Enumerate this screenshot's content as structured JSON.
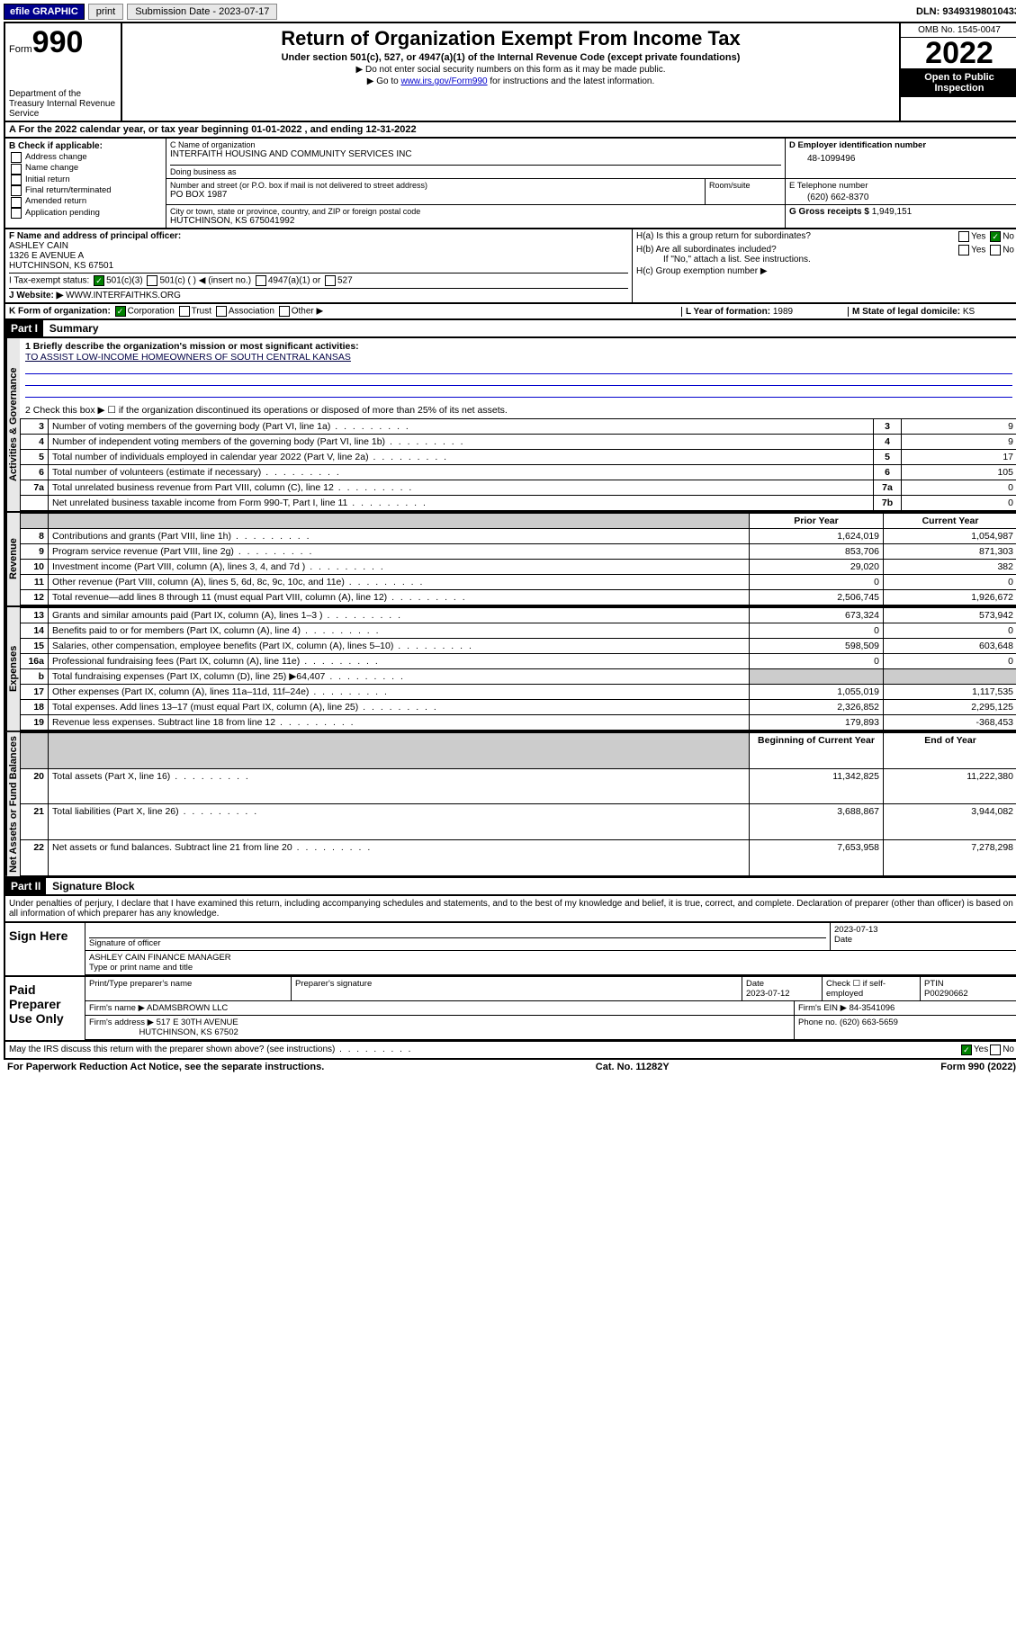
{
  "topbar": {
    "efile": "efile GRAPHIC",
    "print": "print",
    "subdate_label": "Submission Date - 2023-07-17",
    "dln": "DLN: 93493198010433"
  },
  "header": {
    "form_prefix": "Form",
    "form_number": "990",
    "dept": "Department of the Treasury Internal Revenue Service",
    "title": "Return of Organization Exempt From Income Tax",
    "sub1": "Under section 501(c), 527, or 4947(a)(1) of the Internal Revenue Code (except private foundations)",
    "note1": "▶ Do not enter social security numbers on this form as it may be made public.",
    "note2_pre": "▶ Go to ",
    "note2_link": "www.irs.gov/Form990",
    "note2_post": " for instructions and the latest information.",
    "omb": "OMB No. 1545-0047",
    "year": "2022",
    "inspection": "Open to Public Inspection"
  },
  "rowA": "A For the 2022 calendar year, or tax year beginning 01-01-2022   , and ending 12-31-2022",
  "boxB": {
    "title": "B Check if applicable:",
    "items": [
      "Address change",
      "Name change",
      "Initial return",
      "Final return/terminated",
      "Amended return",
      "Application pending"
    ]
  },
  "boxC": {
    "name_label": "C Name of organization",
    "name": "INTERFAITH HOUSING AND COMMUNITY SERVICES INC",
    "dba_label": "Doing business as",
    "street_label": "Number and street (or P.O. box if mail is not delivered to street address)",
    "room_label": "Room/suite",
    "street": "PO BOX 1987",
    "city_label": "City or town, state or province, country, and ZIP or foreign postal code",
    "city": "HUTCHINSON, KS  675041992"
  },
  "boxD": {
    "label": "D Employer identification number",
    "value": "48-1099496"
  },
  "boxE": {
    "label": "E Telephone number",
    "value": "(620) 662-8370"
  },
  "boxG": {
    "label": "G Gross receipts $",
    "value": "1,949,151"
  },
  "boxF": {
    "label": "F Name and address of principal officer:",
    "name": "ASHLEY CAIN",
    "addr1": "1326 E AVENUE A",
    "addr2": "HUTCHINSON, KS  67501"
  },
  "boxH": {
    "a": "H(a)  Is this a group return for subordinates?",
    "b": "H(b)  Are all subordinates included?",
    "bnote": "If \"No,\" attach a list. See instructions.",
    "c": "H(c)  Group exemption number ▶"
  },
  "boxI": {
    "label": "I   Tax-exempt status:",
    "opts": [
      "501(c)(3)",
      "501(c) (  ) ◀ (insert no.)",
      "4947(a)(1) or",
      "527"
    ]
  },
  "boxJ": {
    "label": "J   Website: ▶",
    "value": "WWW.INTERFAITHKS.ORG"
  },
  "boxK": {
    "label": "K Form of organization:",
    "opts": [
      "Corporation",
      "Trust",
      "Association",
      "Other ▶"
    ]
  },
  "boxL": {
    "label": "L Year of formation:",
    "value": "1989"
  },
  "boxM": {
    "label": "M State of legal domicile:",
    "value": "KS"
  },
  "part1": {
    "label": "Part I",
    "title": "Summary",
    "line1": "1  Briefly describe the organization's mission or most significant activities:",
    "mission": "TO ASSIST LOW-INCOME HOMEOWNERS OF SOUTH CENTRAL KANSAS",
    "line2": "2  Check this box ▶ ☐  if the organization discontinued its operations or disposed of more than 25% of its net assets.",
    "sections": {
      "gov": "Activities & Governance",
      "rev": "Revenue",
      "exp": "Expenses",
      "net": "Net Assets or Fund Balances"
    },
    "rows": [
      {
        "n": "3",
        "t": "Number of voting members of the governing body (Part VI, line 1a)",
        "lbl": "3",
        "v": "9"
      },
      {
        "n": "4",
        "t": "Number of independent voting members of the governing body (Part VI, line 1b)",
        "lbl": "4",
        "v": "9"
      },
      {
        "n": "5",
        "t": "Total number of individuals employed in calendar year 2022 (Part V, line 2a)",
        "lbl": "5",
        "v": "17"
      },
      {
        "n": "6",
        "t": "Total number of volunteers (estimate if necessary)",
        "lbl": "6",
        "v": "105"
      },
      {
        "n": "7a",
        "t": "Total unrelated business revenue from Part VIII, column (C), line 12",
        "lbl": "7a",
        "v": "0"
      },
      {
        "n": "",
        "t": "Net unrelated business taxable income from Form 990-T, Part I, line 11",
        "lbl": "7b",
        "v": "0"
      }
    ],
    "hdr": {
      "prior": "Prior Year",
      "current": "Current Year"
    },
    "rev": [
      {
        "n": "8",
        "t": "Contributions and grants (Part VIII, line 1h)",
        "p": "1,624,019",
        "c": "1,054,987"
      },
      {
        "n": "9",
        "t": "Program service revenue (Part VIII, line 2g)",
        "p": "853,706",
        "c": "871,303"
      },
      {
        "n": "10",
        "t": "Investment income (Part VIII, column (A), lines 3, 4, and 7d )",
        "p": "29,020",
        "c": "382"
      },
      {
        "n": "11",
        "t": "Other revenue (Part VIII, column (A), lines 5, 6d, 8c, 9c, 10c, and 11e)",
        "p": "0",
        "c": "0"
      },
      {
        "n": "12",
        "t": "Total revenue—add lines 8 through 11 (must equal Part VIII, column (A), line 12)",
        "p": "2,506,745",
        "c": "1,926,672"
      }
    ],
    "exp": [
      {
        "n": "13",
        "t": "Grants and similar amounts paid (Part IX, column (A), lines 1–3 )",
        "p": "673,324",
        "c": "573,942"
      },
      {
        "n": "14",
        "t": "Benefits paid to or for members (Part IX, column (A), line 4)",
        "p": "0",
        "c": "0"
      },
      {
        "n": "15",
        "t": "Salaries, other compensation, employee benefits (Part IX, column (A), lines 5–10)",
        "p": "598,509",
        "c": "603,648"
      },
      {
        "n": "16a",
        "t": "Professional fundraising fees (Part IX, column (A), line 11e)",
        "p": "0",
        "c": "0"
      },
      {
        "n": "b",
        "t": "Total fundraising expenses (Part IX, column (D), line 25) ▶64,407",
        "p": "",
        "c": "",
        "grey": true
      },
      {
        "n": "17",
        "t": "Other expenses (Part IX, column (A), lines 11a–11d, 11f–24e)",
        "p": "1,055,019",
        "c": "1,117,535"
      },
      {
        "n": "18",
        "t": "Total expenses. Add lines 13–17 (must equal Part IX, column (A), line 25)",
        "p": "2,326,852",
        "c": "2,295,125"
      },
      {
        "n": "19",
        "t": "Revenue less expenses. Subtract line 18 from line 12",
        "p": "179,893",
        "c": "-368,453"
      }
    ],
    "hdr2": {
      "begin": "Beginning of Current Year",
      "end": "End of Year"
    },
    "net": [
      {
        "n": "20",
        "t": "Total assets (Part X, line 16)",
        "p": "11,342,825",
        "c": "11,222,380"
      },
      {
        "n": "21",
        "t": "Total liabilities (Part X, line 26)",
        "p": "3,688,867",
        "c": "3,944,082"
      },
      {
        "n": "22",
        "t": "Net assets or fund balances. Subtract line 21 from line 20",
        "p": "7,653,958",
        "c": "7,278,298"
      }
    ]
  },
  "part2": {
    "label": "Part II",
    "title": "Signature Block",
    "declaration": "Under penalties of perjury, I declare that I have examined this return, including accompanying schedules and statements, and to the best of my knowledge and belief, it is true, correct, and complete. Declaration of preparer (other than officer) is based on all information of which preparer has any knowledge.",
    "sign_here": "Sign Here",
    "sig_officer": "Signature of officer",
    "date": "Date",
    "date_val": "2023-07-13",
    "officer_name": "ASHLEY CAIN FINANCE MANAGER",
    "type_name": "Type or print name and title",
    "paid": "Paid Preparer Use Only",
    "prep_name_lbl": "Print/Type preparer's name",
    "prep_sig_lbl": "Preparer's signature",
    "prep_date_lbl": "Date",
    "prep_date": "2023-07-12",
    "self_emp": "Check ☐ if self-employed",
    "ptin_lbl": "PTIN",
    "ptin": "P00290662",
    "firm_name_lbl": "Firm's name   ▶",
    "firm_name": "ADAMSBROWN LLC",
    "firm_ein_lbl": "Firm's EIN ▶",
    "firm_ein": "84-3541096",
    "firm_addr_lbl": "Firm's address ▶",
    "firm_addr": "517 E 30TH AVENUE",
    "firm_addr2": "HUTCHINSON, KS  67502",
    "phone_lbl": "Phone no.",
    "phone": "(620) 663-5659",
    "discuss": "May the IRS discuss this return with the preparer shown above? (see instructions)",
    "yes": "Yes",
    "no": "No"
  },
  "footer": {
    "left": "For Paperwork Reduction Act Notice, see the separate instructions.",
    "mid": "Cat. No. 11282Y",
    "right": "Form 990 (2022)"
  }
}
